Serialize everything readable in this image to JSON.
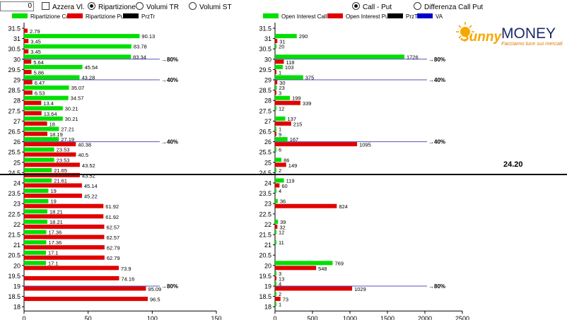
{
  "controls": {
    "number_value": "0",
    "azzera_label": "Azzera Vl.",
    "mode_options": [
      {
        "label": "Ripartizione",
        "selected": true
      },
      {
        "label": "Volumi TR",
        "selected": false
      },
      {
        "label": "Volumi ST",
        "selected": false
      }
    ],
    "right_options": [
      {
        "label": "Call - Put",
        "selected": true
      },
      {
        "label": "Differenza Call Put",
        "selected": false
      }
    ]
  },
  "legend_left": [
    {
      "label": "Ripartizione Call",
      "color": "#00e000"
    },
    {
      "label": "Ripartizione Put",
      "color": "#e00000"
    },
    {
      "label": "PrzTr",
      "color": "#000000"
    }
  ],
  "legend_right": [
    {
      "label": "Open Interest Call",
      "color": "#00e000"
    },
    {
      "label": "Open Interest Put",
      "color": "#e00000"
    },
    {
      "label": "PrzTr",
      "color": "#000000"
    },
    {
      "label": "VA",
      "color": "#0000cc"
    }
  ],
  "logo": {
    "brand_1": "Sunny",
    "brand_2": "MONEY",
    "tagline": "Facciamo luce sui mercati"
  },
  "price_label": "24.20",
  "colors": {
    "call": "#00e000",
    "put": "#e00000",
    "price_line": "#000000",
    "va_line": "#3333aa",
    "pct_line": "#5555bb"
  },
  "chart_data": [
    {
      "type": "bar",
      "title": "Ripartizione",
      "categories": [
        "31.5",
        "31",
        "30.5",
        "30",
        "29.5",
        "29",
        "28.5",
        "28",
        "27.5",
        "27",
        "26.5",
        "26",
        "25.5",
        "25",
        "24.5",
        "24",
        "23.5",
        "23",
        "22.5",
        "22",
        "21.5",
        "21",
        "20.5",
        "20",
        "19.5",
        "19",
        "18.5",
        "18"
      ],
      "series": [
        {
          "name": "Ripartizione Call",
          "values": [
            null,
            90.13,
            83.78,
            83.34,
            45.54,
            43.28,
            35.07,
            34.57,
            30.21,
            30.21,
            27.21,
            27.19,
            23.53,
            23.53,
            21.65,
            21.61,
            19,
            19,
            18.21,
            18.21,
            17.36,
            17.36,
            17.1,
            17.1,
            null,
            null,
            null,
            null
          ]
        },
        {
          "name": "Ripartizione Put",
          "values": [
            2.79,
            3.45,
            3.45,
            5.64,
            5.86,
            6.47,
            6.53,
            13.4,
            13.64,
            18,
            18.19,
            40.38,
            40.5,
            43.52,
            43.52,
            45.14,
            45.22,
            61.92,
            61.92,
            62.57,
            62.57,
            62.79,
            62.79,
            73.9,
            74.16,
            95.09,
            96.5,
            null
          ]
        }
      ],
      "xlim": [
        0,
        150
      ],
      "xticks": [
        "0",
        "50",
        "100",
        "150"
      ],
      "annotations": [
        {
          "strike": "30",
          "label": "80%"
        },
        {
          "strike": "29",
          "label": "40%"
        },
        {
          "strike": "26",
          "label": "40%"
        },
        {
          "strike": "19",
          "label": "80%"
        }
      ],
      "price_level": 24.2
    },
    {
      "type": "bar",
      "title": "Open Interest",
      "categories": [
        "31.5",
        "31",
        "30.5",
        "30",
        "29.5",
        "29",
        "28.5",
        "28",
        "27.5",
        "27",
        "26.5",
        "26",
        "25.5",
        "25",
        "24.5",
        "24",
        "23.5",
        "23",
        "22.5",
        "22",
        "21.5",
        "21",
        "20.5",
        "20",
        "19.5",
        "19",
        "18.5",
        "18"
      ],
      "series": [
        {
          "name": "Open Interest Call",
          "values": [
            null,
            290,
            20,
            1726,
            103,
            375,
            23,
            199,
            12,
            137,
            1,
            167,
            6,
            86,
            2,
            119,
            4,
            36,
            null,
            39,
            12,
            11,
            null,
            769,
            3,
            4,
            2,
            1
          ]
        },
        {
          "name": "Open Interest Put",
          "values": [
            null,
            31,
            null,
            118,
            1,
            30,
            3,
            339,
            null,
            215,
            9,
            1095,
            null,
            149,
            null,
            60,
            null,
            824,
            null,
            32,
            null,
            null,
            null,
            548,
            13,
            1029,
            73,
            null
          ]
        }
      ],
      "xlim": [
        0,
        2500
      ],
      "xticks": [
        "0",
        "500",
        "1000",
        "1500",
        "2000",
        "2500"
      ],
      "annotations": [
        {
          "strike": "30",
          "label": "80%"
        },
        {
          "strike": "29",
          "label": "40%"
        },
        {
          "strike": "26",
          "label": "40%"
        },
        {
          "strike": "19",
          "label": "80%"
        }
      ],
      "price_level": 24.2
    }
  ]
}
